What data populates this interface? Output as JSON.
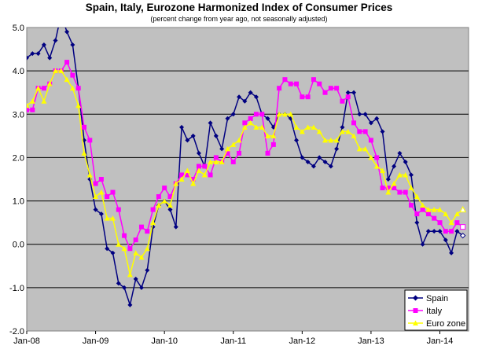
{
  "chart_data": {
    "type": "line",
    "title": "Spain, Italy, Eurozone Harmonized Index of Consumer Prices",
    "subtitle": "(percent change from year ago, not seasonally adjusted)",
    "xlabel": "",
    "ylabel": "",
    "ylim": [
      -2.0,
      5.0
    ],
    "yticks": [
      "5.0",
      "4.0",
      "3.0",
      "2.0",
      "1.0",
      "0.0",
      "-1.0",
      "-2.0"
    ],
    "y_tick_values": [
      5.0,
      4.0,
      3.0,
      2.0,
      1.0,
      0.0,
      -1.0,
      -2.0
    ],
    "xticks": [
      "Jan-08",
      "Jan-09",
      "Jan-10",
      "Jan-11",
      "Jan-12",
      "Jan-13",
      "Jan-14"
    ],
    "x_start": "Jan-08",
    "x_end": "May-14",
    "grid": "horizontal",
    "legend_position": "bottom-right",
    "background_color": "#c0c0c0",
    "series": [
      {
        "name": "Spain",
        "color": "#000080",
        "marker": "diamond",
        "values": [
          4.3,
          4.4,
          4.4,
          4.6,
          4.3,
          4.7,
          5.3,
          4.9,
          4.6,
          3.6,
          2.4,
          1.5,
          0.8,
          0.7,
          -0.1,
          -0.2,
          -0.9,
          -1.0,
          -1.4,
          -0.8,
          -1.0,
          -0.6,
          0.4,
          0.9,
          1.0,
          0.8,
          0.4,
          2.7,
          2.4,
          2.5,
          2.1,
          1.8,
          2.8,
          2.5,
          2.2,
          2.9,
          3.0,
          3.4,
          3.3,
          3.5,
          3.4,
          3.0,
          2.9,
          2.7,
          3.0,
          3.0,
          2.9,
          2.4,
          2.0,
          1.9,
          1.8,
          2.0,
          1.9,
          1.8,
          2.2,
          2.7,
          3.5,
          3.5,
          3.0,
          3.0,
          2.8,
          2.9,
          2.6,
          1.5,
          1.8,
          2.1,
          1.9,
          1.6,
          0.5,
          0.0,
          0.3,
          0.3,
          0.3,
          0.1,
          -0.2,
          0.3,
          0.2
        ]
      },
      {
        "name": "Italy",
        "color": "#ff00ff",
        "marker": "square",
        "values": [
          3.1,
          3.1,
          3.6,
          3.6,
          3.7,
          4.0,
          4.0,
          4.2,
          3.9,
          3.6,
          2.7,
          2.4,
          1.4,
          1.5,
          1.1,
          1.2,
          0.8,
          0.2,
          -0.1,
          0.1,
          0.4,
          0.3,
          0.8,
          1.1,
          1.3,
          1.1,
          1.4,
          1.6,
          1.6,
          1.5,
          1.8,
          1.8,
          1.6,
          2.0,
          1.9,
          2.1,
          1.9,
          2.1,
          2.8,
          2.9,
          3.0,
          3.0,
          2.1,
          2.3,
          3.6,
          3.8,
          3.7,
          3.7,
          3.4,
          3.4,
          3.8,
          3.7,
          3.5,
          3.6,
          3.6,
          3.3,
          3.4,
          2.8,
          2.6,
          2.6,
          2.4,
          2.0,
          1.3,
          1.3,
          1.3,
          1.2,
          1.2,
          0.9,
          0.7,
          0.8,
          0.7,
          0.6,
          0.5,
          0.3,
          0.3,
          0.5,
          0.4
        ]
      },
      {
        "name": "Euro zone",
        "color": "#ffff00",
        "marker": "triangle",
        "values": [
          3.2,
          3.3,
          3.6,
          3.3,
          3.7,
          4.0,
          4.0,
          3.8,
          3.6,
          3.2,
          2.1,
          1.6,
          1.1,
          1.2,
          0.6,
          0.6,
          0.0,
          -0.1,
          -0.7,
          -0.2,
          -0.3,
          -0.1,
          0.5,
          0.9,
          1.0,
          0.9,
          1.4,
          1.5,
          1.7,
          1.4,
          1.7,
          1.6,
          1.9,
          1.9,
          1.9,
          2.2,
          2.3,
          2.4,
          2.7,
          2.8,
          2.7,
          2.7,
          2.5,
          2.5,
          3.0,
          3.0,
          3.0,
          2.7,
          2.6,
          2.7,
          2.7,
          2.6,
          2.4,
          2.4,
          2.4,
          2.6,
          2.6,
          2.5,
          2.2,
          2.2,
          2.0,
          1.8,
          1.7,
          1.2,
          1.4,
          1.6,
          1.6,
          1.3,
          1.1,
          0.9,
          0.8,
          0.8,
          0.8,
          0.7,
          0.5,
          0.7,
          0.8
        ]
      }
    ]
  }
}
